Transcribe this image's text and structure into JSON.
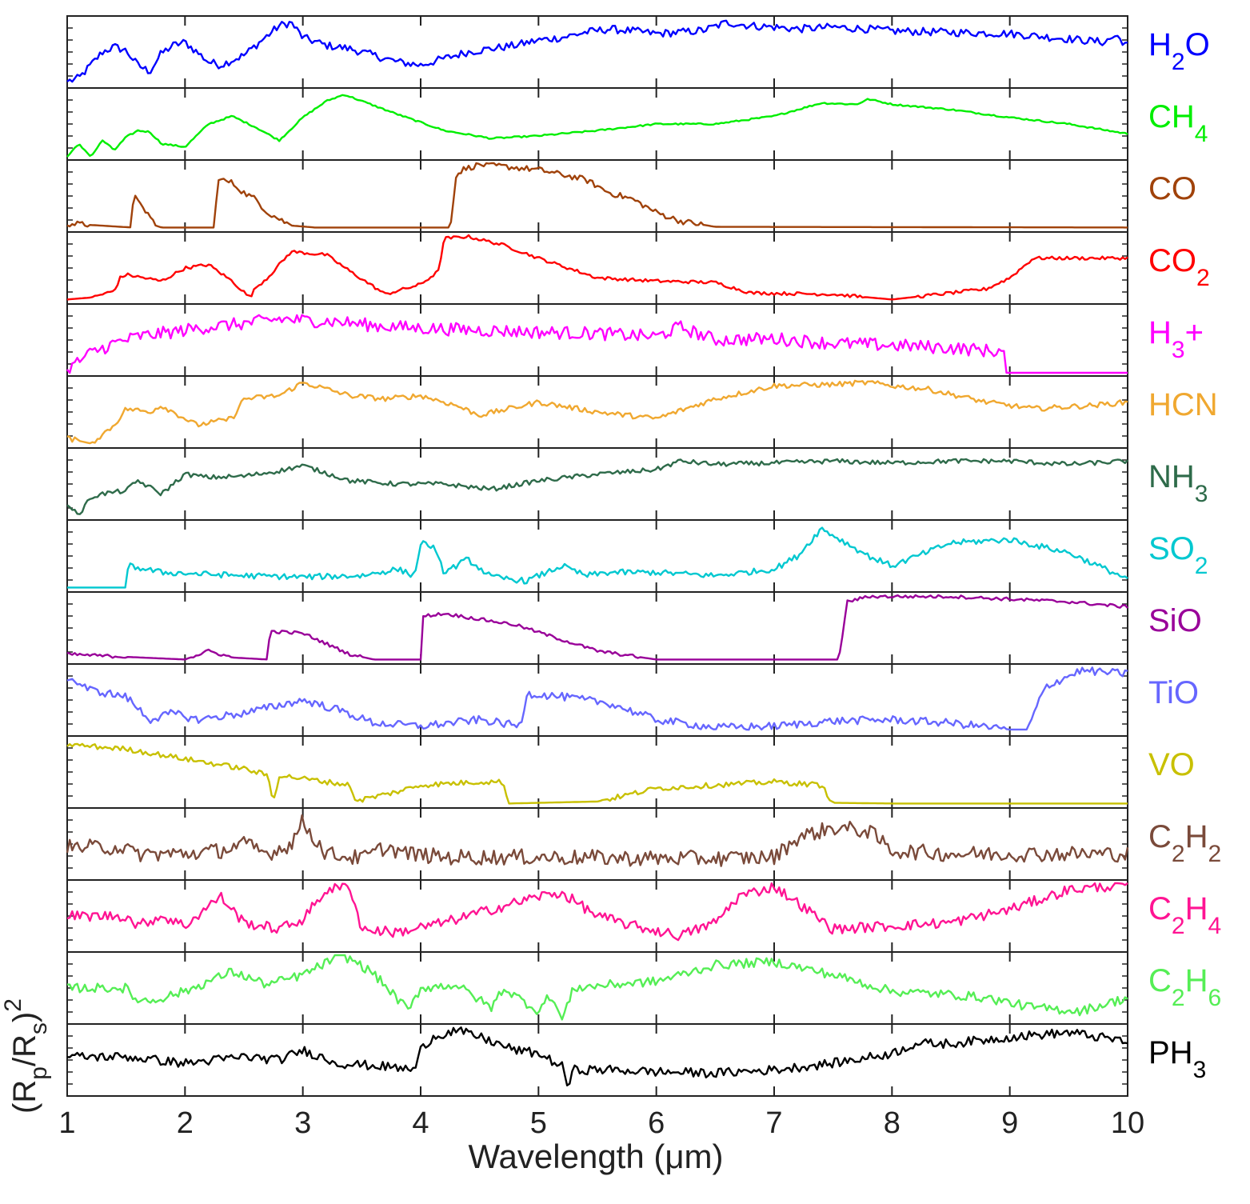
{
  "chart_data": {
    "type": "line",
    "layout": "stacked-panels",
    "xlabel": "Wavelength (μm)",
    "ylabel": "(Rp/Rs)2",
    "xlim": [
      1,
      10
    ],
    "x_ticks": [
      1,
      2,
      3,
      4,
      5,
      6,
      7,
      8,
      9,
      10
    ],
    "y_scale": "normalized per panel, 0 to 1",
    "grid": false,
    "legend": "labels right of each panel",
    "series": [
      {
        "name": "H2O",
        "label_base": "H",
        "label_sub": "2",
        "label_tail": "O",
        "color": "#0000ff",
        "noise": 0.06,
        "x": [
          1.0,
          1.1,
          1.2,
          1.3,
          1.4,
          1.5,
          1.6,
          1.7,
          1.8,
          1.9,
          2.0,
          2.1,
          2.2,
          2.3,
          2.5,
          2.7,
          2.8,
          2.9,
          3.0,
          3.2,
          3.4,
          3.6,
          3.8,
          4.0,
          4.2,
          4.4,
          4.6,
          4.8,
          5.0,
          5.2,
          5.4,
          5.6,
          5.8,
          6.0,
          6.2,
          6.4,
          6.6,
          6.8,
          7.0,
          7.2,
          7.5,
          7.8,
          8.0,
          8.5,
          9.0,
          9.5,
          9.8,
          9.9,
          10.0
        ],
        "y": [
          0.05,
          0.1,
          0.3,
          0.5,
          0.58,
          0.52,
          0.3,
          0.2,
          0.48,
          0.6,
          0.65,
          0.5,
          0.35,
          0.3,
          0.45,
          0.75,
          0.9,
          0.95,
          0.72,
          0.6,
          0.55,
          0.45,
          0.35,
          0.3,
          0.4,
          0.5,
          0.55,
          0.6,
          0.68,
          0.72,
          0.8,
          0.85,
          0.82,
          0.78,
          0.8,
          0.83,
          0.95,
          0.9,
          0.88,
          0.85,
          0.88,
          0.85,
          0.82,
          0.8,
          0.78,
          0.7,
          0.65,
          0.75,
          0.6
        ]
      },
      {
        "name": "CH4",
        "label_base": "CH",
        "label_sub": "4",
        "label_tail": "",
        "color": "#00ee00",
        "noise": 0.012,
        "x": [
          1.0,
          1.1,
          1.2,
          1.3,
          1.4,
          1.5,
          1.6,
          1.7,
          1.8,
          2.0,
          2.2,
          2.4,
          2.6,
          2.8,
          3.0,
          3.2,
          3.35,
          3.5,
          3.8,
          4.2,
          4.6,
          5.0,
          5.5,
          6.0,
          6.5,
          7.0,
          7.4,
          7.7,
          7.8,
          8.0,
          8.5,
          9.0,
          9.5,
          10.0
        ],
        "y": [
          0.0,
          0.2,
          0.0,
          0.25,
          0.1,
          0.3,
          0.4,
          0.38,
          0.2,
          0.15,
          0.5,
          0.62,
          0.45,
          0.25,
          0.6,
          0.85,
          0.95,
          0.85,
          0.65,
          0.4,
          0.28,
          0.32,
          0.4,
          0.5,
          0.5,
          0.62,
          0.82,
          0.8,
          0.88,
          0.8,
          0.72,
          0.6,
          0.5,
          0.35
        ]
      },
      {
        "name": "CO",
        "label_base": "CO",
        "label_sub": "",
        "label_tail": "",
        "color": "#a0420a",
        "noise": 0.045,
        "x": [
          1.0,
          1.55,
          1.56,
          1.6,
          1.7,
          1.75,
          1.8,
          2.25,
          2.28,
          2.3,
          2.4,
          2.5,
          2.6,
          2.7,
          2.9,
          3.1,
          4.25,
          4.3,
          4.35,
          4.5,
          4.7,
          5.0,
          5.4,
          5.6,
          5.8,
          6.0,
          6.2,
          6.5,
          10.0
        ],
        "y": [
          0.08,
          0.02,
          0.55,
          0.4,
          0.2,
          0.05,
          0.02,
          0.02,
          0.8,
          0.75,
          0.7,
          0.55,
          0.45,
          0.25,
          0.05,
          0.02,
          0.02,
          0.8,
          0.9,
          0.98,
          0.95,
          0.9,
          0.75,
          0.55,
          0.45,
          0.25,
          0.12,
          0.03,
          0.02
        ]
      },
      {
        "name": "CO2",
        "label_base": "CO",
        "label_sub": "2",
        "label_tail": "",
        "color": "#ff0000",
        "noise": 0.025,
        "x": [
          1.0,
          1.2,
          1.4,
          1.45,
          1.5,
          1.8,
          2.0,
          2.2,
          2.4,
          2.55,
          2.6,
          2.7,
          2.9,
          3.2,
          3.4,
          3.7,
          4.0,
          4.15,
          4.2,
          4.4,
          4.7,
          5.0,
          5.5,
          6.0,
          6.5,
          6.8,
          7.5,
          8.0,
          8.5,
          8.8,
          9.0,
          9.2,
          10.0
        ],
        "y": [
          0.02,
          0.05,
          0.15,
          0.35,
          0.4,
          0.3,
          0.5,
          0.55,
          0.3,
          0.05,
          0.2,
          0.35,
          0.75,
          0.7,
          0.45,
          0.1,
          0.25,
          0.45,
          0.95,
          0.98,
          0.85,
          0.65,
          0.35,
          0.3,
          0.28,
          0.12,
          0.1,
          0.02,
          0.12,
          0.18,
          0.35,
          0.65,
          0.65
        ]
      },
      {
        "name": "H3+",
        "label_base": "H",
        "label_sub": "3",
        "label_tail": "+",
        "color": "#ff00ff",
        "noise": 0.1,
        "x": [
          1.0,
          1.2,
          1.4,
          1.6,
          1.8,
          2.0,
          2.2,
          2.5,
          2.8,
          3.0,
          3.3,
          3.6,
          4.0,
          4.5,
          5.0,
          5.5,
          6.0,
          6.2,
          6.5,
          7.0,
          7.5,
          8.0,
          8.5,
          8.95,
          8.97
        ],
        "y": [
          0.05,
          0.3,
          0.45,
          0.55,
          0.6,
          0.65,
          0.7,
          0.75,
          0.82,
          0.8,
          0.78,
          0.72,
          0.68,
          0.65,
          0.62,
          0.6,
          0.55,
          0.7,
          0.5,
          0.52,
          0.45,
          0.42,
          0.38,
          0.32,
          0.0
        ]
      },
      {
        "name": "HCN",
        "label_base": "HCN",
        "label_sub": "",
        "label_tail": "",
        "color": "#f0a830",
        "noise": 0.04,
        "x": [
          1.0,
          1.2,
          1.4,
          1.5,
          1.7,
          1.8,
          2.1,
          2.4,
          2.5,
          2.8,
          3.0,
          3.1,
          3.4,
          3.7,
          4.0,
          4.3,
          4.5,
          5.0,
          5.5,
          6.0,
          6.5,
          7.0,
          7.5,
          7.8,
          8.0,
          8.3,
          8.8,
          9.2,
          9.7,
          10.0
        ],
        "y": [
          0.1,
          0.02,
          0.3,
          0.55,
          0.5,
          0.6,
          0.3,
          0.4,
          0.7,
          0.75,
          0.95,
          0.9,
          0.75,
          0.7,
          0.75,
          0.6,
          0.45,
          0.65,
          0.5,
          0.4,
          0.7,
          0.9,
          0.92,
          0.95,
          0.9,
          0.85,
          0.65,
          0.55,
          0.6,
          0.65
        ]
      },
      {
        "name": "NH3",
        "label_base": "NH",
        "label_sub": "3",
        "label_tail": "",
        "color": "#2e6b4a",
        "noise": 0.035,
        "x": [
          1.0,
          1.1,
          1.2,
          1.3,
          1.5,
          1.6,
          1.8,
          2.0,
          2.2,
          2.5,
          2.8,
          3.0,
          3.4,
          3.8,
          4.2,
          4.6,
          5.0,
          5.5,
          6.0,
          6.2,
          6.5,
          7.0,
          7.5,
          8.0,
          8.5,
          9.0,
          9.5,
          10.0
        ],
        "y": [
          0.2,
          0.02,
          0.3,
          0.35,
          0.4,
          0.55,
          0.35,
          0.65,
          0.6,
          0.62,
          0.7,
          0.78,
          0.55,
          0.5,
          0.5,
          0.42,
          0.55,
          0.65,
          0.72,
          0.85,
          0.8,
          0.82,
          0.85,
          0.82,
          0.85,
          0.85,
          0.8,
          0.85
        ]
      },
      {
        "name": "SO2",
        "label_base": "SO",
        "label_sub": "2",
        "label_tail": "",
        "color": "#00c8d0",
        "noise": 0.045,
        "x": [
          1.0,
          1.5,
          1.52,
          1.8,
          2.5,
          3.0,
          3.5,
          3.8,
          3.95,
          4.0,
          4.1,
          4.2,
          4.4,
          4.6,
          4.9,
          5.2,
          5.4,
          5.6,
          6.0,
          6.5,
          7.0,
          7.2,
          7.4,
          7.8,
          8.0,
          8.5,
          9.0,
          9.5,
          10.0
        ],
        "y": [
          0.02,
          0.02,
          0.35,
          0.25,
          0.2,
          0.18,
          0.2,
          0.3,
          0.2,
          0.7,
          0.65,
          0.25,
          0.45,
          0.18,
          0.12,
          0.35,
          0.2,
          0.25,
          0.25,
          0.2,
          0.3,
          0.5,
          0.92,
          0.5,
          0.35,
          0.7,
          0.75,
          0.55,
          0.15
        ]
      },
      {
        "name": "SiO",
        "label_base": "SiO",
        "label_sub": "",
        "label_tail": "",
        "color": "#990099",
        "noise": 0.025,
        "x": [
          1.0,
          2.0,
          2.2,
          2.4,
          2.7,
          2.72,
          3.0,
          3.4,
          3.6,
          4.0,
          4.01,
          4.2,
          4.8,
          5.5,
          6.0,
          7.0,
          7.55,
          7.62,
          7.8,
          8.5,
          9.5,
          10.0
        ],
        "y": [
          0.1,
          0.02,
          0.15,
          0.05,
          0.02,
          0.45,
          0.42,
          0.1,
          0.02,
          0.02,
          0.68,
          0.72,
          0.55,
          0.15,
          0.02,
          0.02,
          0.02,
          0.9,
          0.98,
          0.98,
          0.9,
          0.82
        ]
      },
      {
        "name": "TiO",
        "label_base": "TiO",
        "label_sub": "",
        "label_tail": "",
        "color": "#6666ff",
        "noise": 0.06,
        "x": [
          1.0,
          1.2,
          1.5,
          1.7,
          1.9,
          2.1,
          2.5,
          3.0,
          3.3,
          3.6,
          4.0,
          4.5,
          4.85,
          4.9,
          5.2,
          5.6,
          6.0,
          6.5,
          7.0,
          7.5,
          8.0,
          8.5,
          9.0,
          9.15,
          9.3,
          9.6,
          10.0
        ],
        "y": [
          0.85,
          0.65,
          0.55,
          0.2,
          0.3,
          0.2,
          0.3,
          0.5,
          0.35,
          0.15,
          0.1,
          0.2,
          0.1,
          0.6,
          0.55,
          0.45,
          0.2,
          0.08,
          0.1,
          0.18,
          0.2,
          0.15,
          0.05,
          0.05,
          0.7,
          0.95,
          0.9
        ]
      },
      {
        "name": "VO",
        "label_base": "VO",
        "label_sub": "",
        "label_tail": "",
        "color": "#c8c000",
        "noise": 0.04,
        "x": [
          1.0,
          1.5,
          2.0,
          2.5,
          2.7,
          2.75,
          2.8,
          3.0,
          3.4,
          3.45,
          3.5,
          3.8,
          4.0,
          4.5,
          4.7,
          4.75,
          5.5,
          6.0,
          6.5,
          7.0,
          7.4,
          7.5,
          8.0,
          9.0,
          10.0
        ],
        "y": [
          0.92,
          0.85,
          0.7,
          0.55,
          0.45,
          0.05,
          0.45,
          0.4,
          0.3,
          0.05,
          0.08,
          0.2,
          0.3,
          0.35,
          0.35,
          0.02,
          0.05,
          0.25,
          0.3,
          0.35,
          0.3,
          0.03,
          0.02,
          0.02,
          0.02
        ]
      },
      {
        "name": "C2H2",
        "label_base": "C",
        "label_sub": "2",
        "label_tail": "H",
        "label_sub2": "2",
        "color": "#7a4a3a",
        "noise": 0.12,
        "x": [
          1.0,
          1.5,
          1.55,
          2.0,
          2.3,
          2.5,
          2.7,
          2.9,
          3.0,
          3.05,
          3.2,
          3.5,
          3.7,
          3.9,
          4.2,
          5.0,
          6.0,
          6.5,
          7.0,
          7.2,
          7.5,
          7.8,
          8.0,
          8.5,
          9.0,
          10.0
        ],
        "y": [
          0.45,
          0.45,
          0.35,
          0.35,
          0.4,
          0.5,
          0.35,
          0.5,
          0.85,
          0.7,
          0.35,
          0.28,
          0.45,
          0.35,
          0.3,
          0.3,
          0.28,
          0.28,
          0.3,
          0.6,
          0.75,
          0.7,
          0.4,
          0.35,
          0.35,
          0.35
        ]
      },
      {
        "name": "C2H4",
        "label_base": "C",
        "label_sub": "2",
        "label_tail": "H",
        "label_sub2": "4",
        "color": "#ff1493",
        "noise": 0.08,
        "x": [
          1.0,
          1.5,
          1.6,
          1.8,
          2.0,
          2.3,
          2.5,
          2.8,
          3.0,
          3.2,
          3.4,
          3.5,
          3.8,
          4.2,
          4.6,
          5.0,
          5.2,
          5.5,
          5.8,
          6.2,
          6.5,
          6.7,
          7.0,
          7.2,
          7.5,
          8.0,
          8.5,
          9.0,
          9.5,
          10.0
        ],
        "y": [
          0.5,
          0.5,
          0.35,
          0.5,
          0.35,
          0.8,
          0.4,
          0.3,
          0.45,
          0.9,
          0.95,
          0.3,
          0.25,
          0.4,
          0.6,
          0.8,
          0.85,
          0.5,
          0.35,
          0.2,
          0.4,
          0.8,
          0.95,
          0.7,
          0.3,
          0.35,
          0.4,
          0.6,
          0.9,
          0.98
        ]
      },
      {
        "name": "C2H6",
        "label_base": "C",
        "label_sub": "2",
        "label_tail": "H",
        "label_sub2": "6",
        "color": "#55ee55",
        "noise": 0.07,
        "x": [
          1.0,
          1.5,
          1.55,
          1.7,
          2.0,
          2.4,
          2.7,
          3.0,
          3.3,
          3.4,
          3.6,
          3.9,
          4.0,
          4.3,
          4.6,
          4.7,
          5.0,
          5.1,
          5.2,
          5.3,
          5.6,
          6.0,
          6.5,
          7.0,
          7.5,
          8.0,
          8.5,
          8.8,
          9.2,
          9.6,
          10.0
        ],
        "y": [
          0.5,
          0.5,
          0.35,
          0.3,
          0.45,
          0.75,
          0.55,
          0.7,
          0.98,
          0.95,
          0.72,
          0.15,
          0.5,
          0.55,
          0.2,
          0.5,
          0.15,
          0.4,
          0.02,
          0.5,
          0.55,
          0.6,
          0.85,
          0.9,
          0.7,
          0.45,
          0.4,
          0.35,
          0.2,
          0.15,
          0.35
        ]
      },
      {
        "name": "PH3",
        "label_base": "PH",
        "label_sub": "3",
        "label_tail": "",
        "color": "#000000",
        "noise": 0.07,
        "x": [
          1.0,
          1.5,
          2.0,
          2.5,
          2.8,
          3.0,
          3.3,
          3.7,
          3.95,
          4.0,
          4.1,
          4.3,
          4.5,
          4.8,
          5.0,
          5.2,
          5.25,
          5.3,
          5.6,
          6.0,
          6.5,
          7.0,
          7.5,
          8.0,
          8.2,
          8.5,
          9.0,
          9.5,
          10.0
        ],
        "y": [
          0.55,
          0.55,
          0.45,
          0.55,
          0.5,
          0.65,
          0.45,
          0.4,
          0.35,
          0.65,
          0.85,
          0.95,
          0.85,
          0.65,
          0.6,
          0.4,
          0.1,
          0.35,
          0.35,
          0.32,
          0.3,
          0.35,
          0.45,
          0.6,
          0.75,
          0.75,
          0.85,
          0.92,
          0.78
        ]
      }
    ]
  }
}
